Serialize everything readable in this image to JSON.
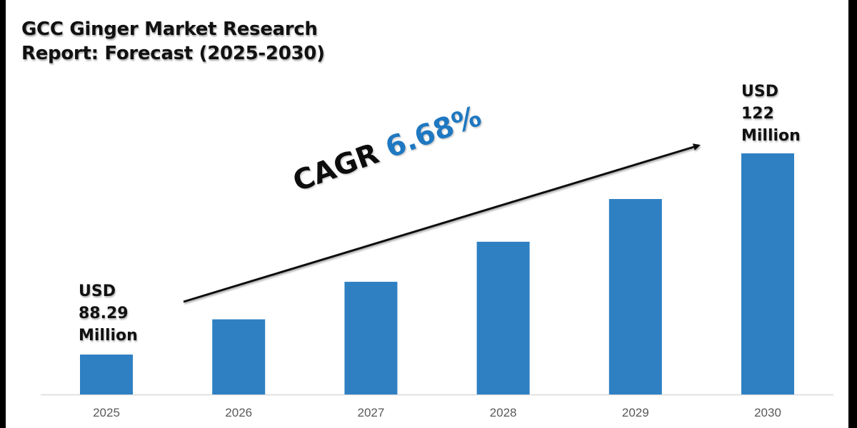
{
  "chart_data": {
    "type": "bar",
    "title": "GCC Ginger Market Research Report: Forecast (2025-2030)",
    "title_lines": [
      "GCC Ginger Market Research",
      "Report: Forecast (2025-2030)"
    ],
    "categories": [
      "2025",
      "2026",
      "2027",
      "2028",
      "2029",
      "2030"
    ],
    "values": [
      88.29,
      94.19,
      100.48,
      107.19,
      114.35,
      122
    ],
    "unit": "USD Million",
    "xlabel": "",
    "ylabel": "",
    "ylim": [
      81.6,
      122
    ],
    "grid": false,
    "bar_color": "#2e80c3",
    "annotations": {
      "start": {
        "lines": [
          "USD",
          "88.29",
          "Million"
        ],
        "category": "2025"
      },
      "end": {
        "lines": [
          "USD",
          "122",
          "Million"
        ],
        "category": "2030"
      },
      "cagr": {
        "label": "CAGR",
        "value": "6.68%",
        "value_color": "#1f78c1"
      }
    }
  }
}
